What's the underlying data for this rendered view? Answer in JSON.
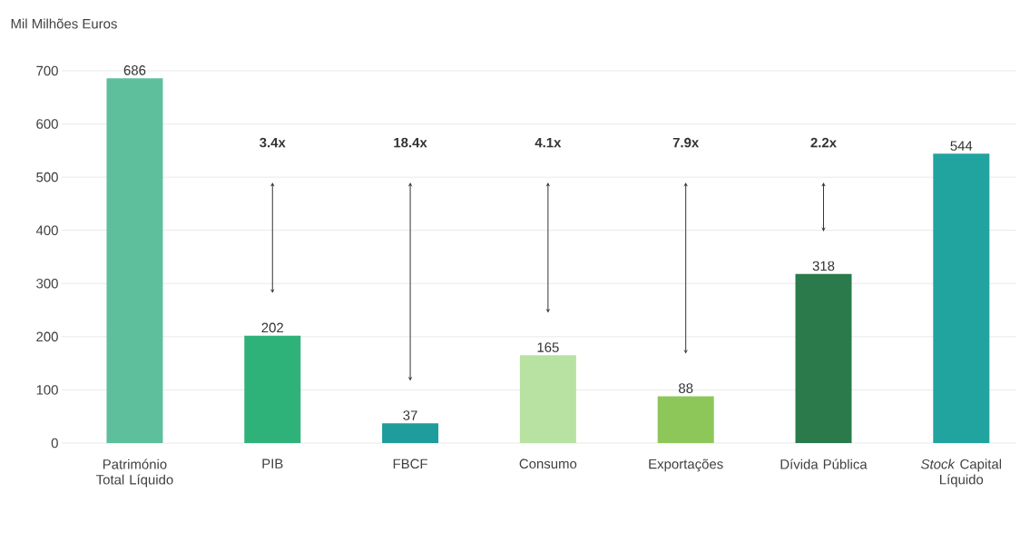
{
  "chart_data": {
    "type": "bar",
    "ylabel": "Mil Milhões Euros",
    "categories": [
      "Património Total Líquido",
      "PIB",
      "FBCF",
      "Consumo",
      "Exportações",
      "Dívida Pública",
      "*Stock* Capital Líquido"
    ],
    "values": [
      686,
      202,
      37,
      165,
      88,
      318,
      544
    ],
    "colors": [
      "#5dbf9c",
      "#2fb27a",
      "#1f9c9c",
      "#b8e2a2",
      "#8dc75a",
      "#2b7a4c",
      "#21a3a0"
    ],
    "data_labels": true,
    "ylim": [
      0,
      700
    ],
    "yticks": [
      0,
      100,
      200,
      300,
      400,
      500,
      600,
      700
    ],
    "grid": "y",
    "annotations": [
      "**3.4x**",
      "**18.4x**",
      "**4.1x**",
      "**7.9x**",
      "**2.2x**"
    ]
  }
}
